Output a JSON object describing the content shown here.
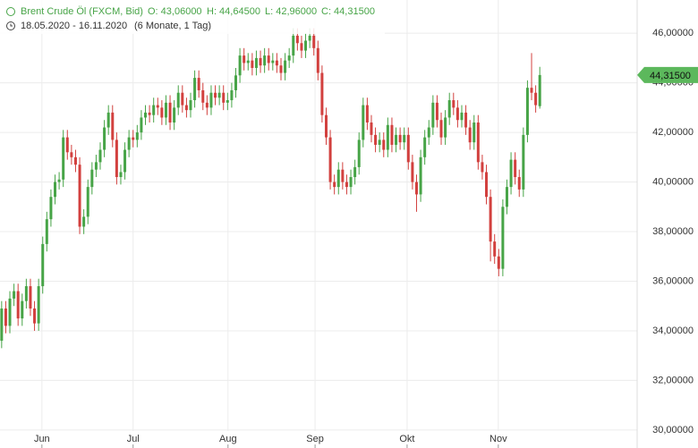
{
  "chart_data": {
    "type": "candlestick",
    "title": "Brent Crude Öl (FXCM, Bid)",
    "ohlc_header": [
      "O: 43,06000",
      "H: 44,64500",
      "L: 42,96000",
      "C: 44,31500"
    ],
    "date_range": "18.05.2020 - 16.11.2020",
    "period": "(6 Monate, 1 Tag)",
    "up_color": "#47a447",
    "down_color": "#d2403e",
    "grid": true,
    "last_price": {
      "value": 44.315,
      "label": "44,31500"
    },
    "ylim": [
      29.96,
      47.34
    ],
    "yticks": [
      {
        "value": 30,
        "label": "30,00000"
      },
      {
        "value": 32,
        "label": "32,00000"
      },
      {
        "value": 34,
        "label": "34,00000"
      },
      {
        "value": 36,
        "label": "36,00000"
      },
      {
        "value": 38,
        "label": "38,00000"
      },
      {
        "value": 40,
        "label": "40,00000"
      },
      {
        "value": 42,
        "label": "42,00000"
      },
      {
        "value": 44,
        "label": "44,00000"
      },
      {
        "value": 46,
        "label": "46,00000"
      }
    ],
    "xlim": [
      -0.4,
      154.7
    ],
    "xticks": [
      {
        "value": 9.8,
        "label": "Jun"
      },
      {
        "value": 32,
        "label": "Jul"
      },
      {
        "value": 55.1,
        "label": "Aug"
      },
      {
        "value": 76.3,
        "label": "Sep"
      },
      {
        "value": 98.7,
        "label": "Okt"
      },
      {
        "value": 120.9,
        "label": "Nov"
      }
    ],
    "ohlc": [
      [
        33.6,
        35.2,
        33.3,
        34.9
      ],
      [
        34.9,
        35.2,
        33.9,
        34.2
      ],
      [
        34.2,
        35.6,
        33.9,
        35.3
      ],
      [
        35.3,
        35.9,
        35.0,
        35.6
      ],
      [
        35.6,
        35.9,
        34.2,
        34.5
      ],
      [
        34.5,
        35.5,
        34.2,
        35.2
      ],
      [
        35.2,
        36.1,
        34.9,
        35.8
      ],
      [
        35.8,
        36.1,
        34.6,
        34.9
      ],
      [
        34.9,
        35.2,
        34.0,
        34.3
      ],
      [
        34.3,
        36.1,
        34.0,
        35.8
      ],
      [
        35.8,
        37.8,
        35.5,
        37.5
      ],
      [
        37.5,
        38.8,
        37.2,
        38.5
      ],
      [
        38.5,
        39.7,
        38.2,
        39.4
      ],
      [
        39.4,
        40.3,
        39.1,
        40.0
      ],
      [
        40.0,
        40.4,
        39.7,
        40.1
      ],
      [
        40.1,
        42.1,
        39.8,
        41.8
      ],
      [
        41.8,
        42.1,
        40.9,
        41.2
      ],
      [
        41.2,
        41.5,
        40.7,
        41.0
      ],
      [
        41.0,
        41.3,
        40.4,
        40.7
      ],
      [
        40.7,
        41.0,
        37.9,
        38.2
      ],
      [
        38.2,
        38.9,
        37.9,
        38.6
      ],
      [
        38.6,
        40.1,
        38.3,
        39.8
      ],
      [
        39.8,
        40.8,
        39.5,
        40.5
      ],
      [
        40.5,
        41.1,
        40.2,
        40.8
      ],
      [
        40.8,
        41.6,
        40.5,
        41.3
      ],
      [
        41.3,
        42.5,
        41.0,
        42.2
      ],
      [
        42.2,
        43.1,
        41.9,
        42.8
      ],
      [
        42.8,
        43.1,
        41.4,
        41.7
      ],
      [
        41.7,
        42.0,
        39.9,
        40.2
      ],
      [
        40.2,
        40.7,
        39.9,
        40.4
      ],
      [
        40.4,
        41.6,
        40.1,
        41.3
      ],
      [
        41.3,
        42.1,
        41.0,
        41.8
      ],
      [
        41.8,
        42.1,
        41.4,
        41.7
      ],
      [
        41.7,
        42.3,
        41.4,
        42.0
      ],
      [
        42.0,
        42.9,
        41.7,
        42.6
      ],
      [
        42.6,
        43.1,
        42.3,
        42.8
      ],
      [
        42.8,
        43.1,
        42.4,
        42.7
      ],
      [
        42.7,
        43.4,
        42.4,
        43.1
      ],
      [
        43.1,
        43.4,
        42.7,
        43.0
      ],
      [
        43.0,
        43.3,
        42.3,
        42.6
      ],
      [
        42.6,
        43.5,
        42.3,
        43.2
      ],
      [
        43.2,
        43.5,
        42.1,
        42.4
      ],
      [
        42.4,
        43.3,
        42.1,
        43.0
      ],
      [
        43.0,
        43.9,
        42.7,
        43.6
      ],
      [
        43.6,
        43.9,
        42.8,
        43.1
      ],
      [
        43.1,
        43.4,
        42.6,
        42.9
      ],
      [
        42.9,
        43.6,
        42.6,
        43.3
      ],
      [
        43.3,
        44.5,
        43.0,
        44.2
      ],
      [
        44.2,
        44.5,
        43.4,
        43.7
      ],
      [
        43.7,
        44.0,
        42.9,
        43.2
      ],
      [
        43.2,
        43.5,
        42.7,
        43.0
      ],
      [
        43.0,
        43.9,
        42.7,
        43.6
      ],
      [
        43.6,
        43.9,
        43.1,
        43.4
      ],
      [
        43.4,
        43.9,
        43.1,
        43.6
      ],
      [
        43.6,
        43.9,
        42.9,
        43.2
      ],
      [
        43.2,
        43.6,
        42.9,
        43.3
      ],
      [
        43.3,
        44.0,
        43.0,
        43.7
      ],
      [
        43.7,
        44.6,
        43.4,
        44.3
      ],
      [
        44.3,
        45.4,
        44.0,
        45.1
      ],
      [
        45.1,
        45.4,
        44.5,
        44.8
      ],
      [
        44.8,
        45.2,
        44.5,
        44.9
      ],
      [
        44.9,
        45.2,
        44.3,
        44.6
      ],
      [
        44.6,
        45.3,
        44.3,
        45.0
      ],
      [
        45.0,
        45.3,
        44.4,
        44.7
      ],
      [
        44.7,
        45.4,
        44.4,
        45.1
      ],
      [
        45.1,
        45.4,
        44.5,
        44.8
      ],
      [
        44.8,
        45.2,
        44.5,
        44.9
      ],
      [
        44.9,
        45.2,
        44.4,
        44.7
      ],
      [
        44.7,
        45.0,
        44.1,
        44.4
      ],
      [
        44.4,
        45.2,
        44.1,
        44.9
      ],
      [
        44.9,
        45.4,
        44.6,
        45.1
      ],
      [
        45.1,
        46.2,
        44.8,
        45.9
      ],
      [
        45.9,
        46.2,
        45.3,
        45.6
      ],
      [
        45.6,
        45.9,
        45.0,
        45.3
      ],
      [
        45.3,
        46.0,
        45.0,
        45.7
      ],
      [
        45.7,
        46.2,
        45.4,
        45.9
      ],
      [
        45.9,
        46.2,
        45.1,
        45.4
      ],
      [
        45.4,
        45.7,
        44.1,
        44.4
      ],
      [
        44.4,
        44.7,
        42.4,
        42.7
      ],
      [
        42.7,
        43.0,
        41.5,
        41.8
      ],
      [
        41.8,
        42.1,
        39.7,
        40.0
      ],
      [
        40.0,
        40.3,
        39.5,
        39.8
      ],
      [
        39.8,
        40.8,
        39.5,
        40.5
      ],
      [
        40.5,
        40.8,
        39.7,
        40.0
      ],
      [
        40.0,
        40.3,
        39.5,
        39.8
      ],
      [
        39.8,
        40.5,
        39.5,
        40.2
      ],
      [
        40.2,
        40.9,
        39.9,
        40.6
      ],
      [
        40.6,
        42.0,
        40.3,
        41.7
      ],
      [
        41.7,
        43.4,
        41.4,
        43.1
      ],
      [
        43.1,
        43.4,
        42.1,
        42.4
      ],
      [
        42.4,
        42.7,
        41.6,
        41.9
      ],
      [
        41.9,
        42.2,
        41.2,
        41.5
      ],
      [
        41.5,
        42.0,
        41.2,
        41.7
      ],
      [
        41.7,
        42.0,
        41.0,
        41.3
      ],
      [
        41.3,
        42.6,
        41.0,
        42.3
      ],
      [
        42.3,
        42.6,
        41.2,
        41.5
      ],
      [
        41.5,
        42.2,
        41.2,
        41.9
      ],
      [
        41.9,
        42.2,
        41.3,
        41.6
      ],
      [
        41.6,
        42.2,
        41.3,
        41.9
      ],
      [
        41.9,
        42.2,
        40.5,
        40.8
      ],
      [
        40.8,
        41.1,
        39.7,
        40.0
      ],
      [
        40.0,
        40.3,
        38.8,
        39.5
      ],
      [
        39.5,
        41.3,
        39.2,
        41.0
      ],
      [
        41.0,
        42.1,
        40.7,
        41.8
      ],
      [
        41.8,
        42.5,
        41.5,
        42.2
      ],
      [
        42.2,
        43.5,
        41.9,
        43.2
      ],
      [
        43.2,
        43.5,
        42.2,
        42.5
      ],
      [
        42.5,
        42.8,
        41.5,
        41.8
      ],
      [
        41.8,
        42.9,
        41.5,
        42.6
      ],
      [
        42.6,
        43.6,
        42.3,
        43.3
      ],
      [
        43.3,
        43.6,
        42.7,
        43.0
      ],
      [
        43.0,
        43.3,
        42.2,
        42.5
      ],
      [
        42.5,
        43.1,
        42.2,
        42.8
      ],
      [
        42.8,
        43.1,
        41.9,
        42.2
      ],
      [
        42.2,
        42.5,
        41.3,
        41.6
      ],
      [
        41.6,
        42.7,
        41.3,
        42.4
      ],
      [
        42.4,
        42.7,
        40.5,
        40.8
      ],
      [
        40.8,
        41.1,
        40.1,
        40.4
      ],
      [
        40.4,
        40.7,
        39.1,
        39.4
      ],
      [
        39.4,
        39.7,
        36.8,
        37.6
      ],
      [
        37.6,
        37.9,
        36.7,
        37.0
      ],
      [
        37.0,
        37.3,
        36.2,
        36.5
      ],
      [
        36.5,
        39.3,
        36.2,
        39.0
      ],
      [
        39.0,
        40.1,
        38.7,
        39.8
      ],
      [
        39.8,
        41.2,
        39.5,
        40.9
      ],
      [
        40.9,
        41.2,
        39.9,
        40.2
      ],
      [
        40.2,
        40.5,
        39.4,
        39.7
      ],
      [
        39.7,
        42.2,
        39.4,
        41.9
      ],
      [
        41.9,
        44.1,
        41.6,
        43.8
      ],
      [
        43.8,
        45.2,
        43.3,
        43.6
      ],
      [
        43.6,
        43.9,
        42.8,
        43.1
      ],
      [
        43.06,
        44.645,
        42.96,
        44.315
      ]
    ]
  }
}
